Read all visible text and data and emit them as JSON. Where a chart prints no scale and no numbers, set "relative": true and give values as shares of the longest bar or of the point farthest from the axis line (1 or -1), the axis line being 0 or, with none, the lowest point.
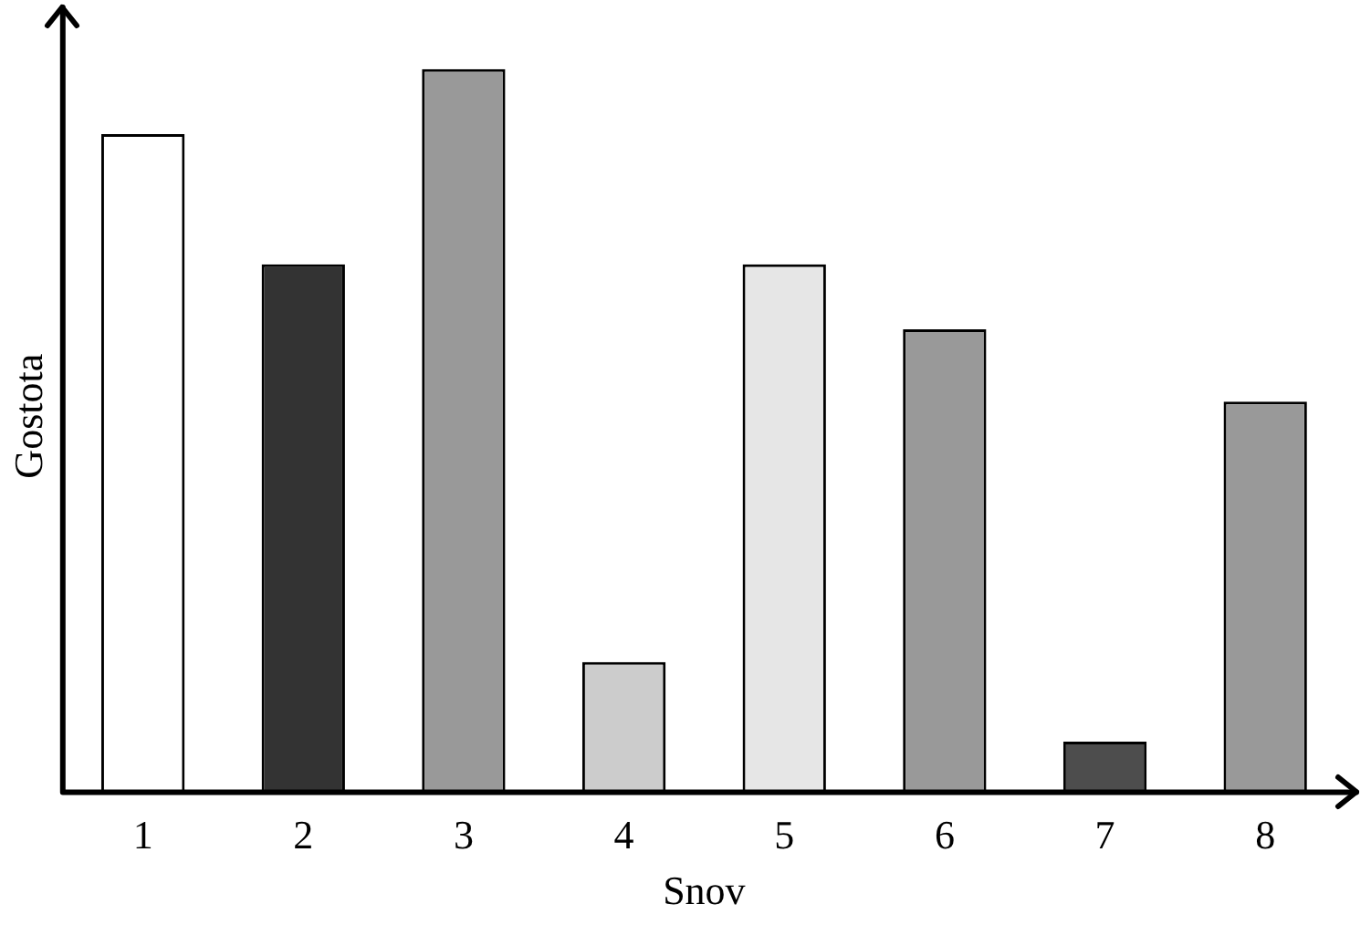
{
  "chart_data": {
    "type": "bar",
    "xlabel": "Snov",
    "ylabel": "Gostota",
    "relative": true,
    "grid": false,
    "legend": false,
    "categories": [
      "1",
      "2",
      "3",
      "4",
      "5",
      "6",
      "7",
      "8"
    ],
    "values": [
      0.91,
      0.73,
      1,
      0.18,
      0.73,
      0.64,
      0.07,
      0.54
    ],
    "colors": [
      "#ffffff",
      "#333333",
      "#999999",
      "#cccccc",
      "#e6e6e6",
      "#999999",
      "#4d4d4d",
      "#999999"
    ]
  }
}
